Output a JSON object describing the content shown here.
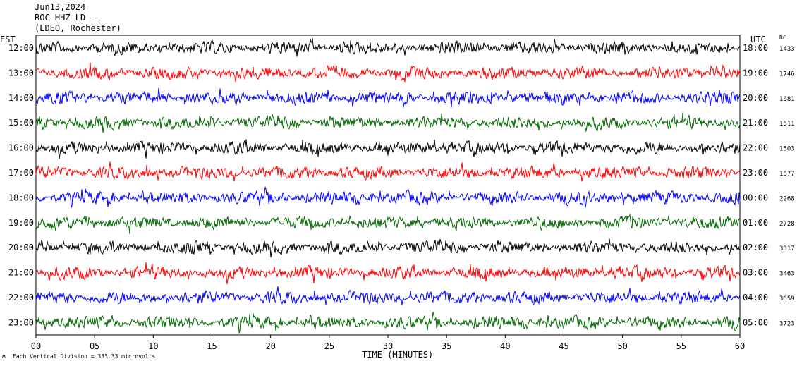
{
  "header": {
    "date": "Jun13,2024",
    "station": "ROC HHZ LD --",
    "network": "(LDEO, Rochester)"
  },
  "left_zone": "EST",
  "right_zone": "UTC",
  "dc_header": "DC",
  "footer_note": "Each Vertical Division =  333.33 microvolts",
  "colors": {
    "black": "#000000",
    "red": "#ff0000",
    "blue": "#0000ff",
    "green": "#006600"
  },
  "chart_data": {
    "type": "line",
    "xlabel": "TIME (MINUTES)",
    "xlim": [
      0,
      60
    ],
    "x_ticks": [
      "00",
      "05",
      "10",
      "15",
      "20",
      "25",
      "30",
      "35",
      "40",
      "45",
      "50",
      "55",
      "60"
    ],
    "rows": [
      {
        "est": "12:00",
        "utc": "18:00",
        "dc": "1433",
        "color": "#000000"
      },
      {
        "est": "13:00",
        "utc": "19:00",
        "dc": "1746",
        "color": "#ff0000"
      },
      {
        "est": "14:00",
        "utc": "20:00",
        "dc": "1681",
        "color": "#0000ff"
      },
      {
        "est": "15:00",
        "utc": "21:00",
        "dc": "1611",
        "color": "#006600"
      },
      {
        "est": "16:00",
        "utc": "22:00",
        "dc": "1503",
        "color": "#000000"
      },
      {
        "est": "17:00",
        "utc": "23:00",
        "dc": "1677",
        "color": "#ff0000"
      },
      {
        "est": "18:00",
        "utc": "00:00",
        "dc": "2268",
        "color": "#0000ff"
      },
      {
        "est": "19:00",
        "utc": "01:00",
        "dc": "2728",
        "color": "#006600"
      },
      {
        "est": "20:00",
        "utc": "02:00",
        "dc": "3017",
        "color": "#000000"
      },
      {
        "est": "21:00",
        "utc": "03:00",
        "dc": "3463",
        "color": "#ff0000"
      },
      {
        "est": "22:00",
        "utc": "04:00",
        "dc": "3659",
        "color": "#0000ff"
      },
      {
        "est": "23:00",
        "utc": "05:00",
        "dc": "3723",
        "color": "#006600"
      }
    ]
  }
}
